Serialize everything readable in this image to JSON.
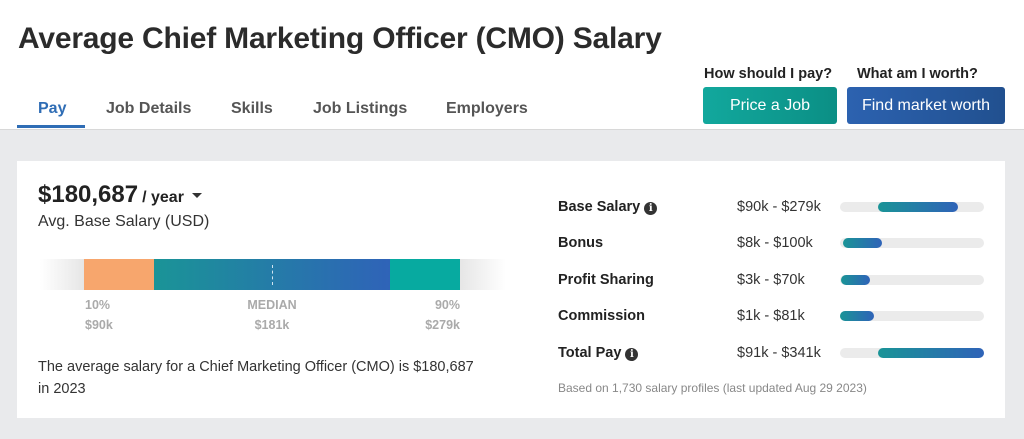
{
  "title": "Average Chief Marketing Officer (CMO) Salary",
  "tabs": [
    {
      "label": "Pay",
      "active": true
    },
    {
      "label": "Job Details"
    },
    {
      "label": "Skills"
    },
    {
      "label": "Job Listings"
    },
    {
      "label": "Employers"
    }
  ],
  "cta": {
    "price_question": "How should I pay?",
    "price_button": "Price a Job",
    "worth_question": "What am I worth?",
    "worth_button": "Find market worth"
  },
  "salary": {
    "amount": "$180,687",
    "period": "/ year",
    "label": "Avg. Base Salary (USD)"
  },
  "distribution": {
    "p10_label": "10%",
    "p10_value": "$90k",
    "median_label": "MEDIAN",
    "median_value": "$181k",
    "p90_label": "90%",
    "p90_value": "$279k"
  },
  "summary": "The average salary for a Chief Marketing Officer (CMO) is $180,687 in 2023",
  "breakdown": [
    {
      "label": "Base Salary",
      "info": true,
      "range": "$90k - $279k",
      "low": 90,
      "high": 279
    },
    {
      "label": "Bonus",
      "info": false,
      "range": "$8k - $100k",
      "low": 8,
      "high": 100
    },
    {
      "label": "Profit Sharing",
      "info": false,
      "range": "$3k - $70k",
      "low": 3,
      "high": 70
    },
    {
      "label": "Commission",
      "info": false,
      "range": "$1k - $81k",
      "low": 1,
      "high": 81
    },
    {
      "label": "Total Pay",
      "info": true,
      "range": "$91k - $341k",
      "low": 91,
      "high": 341
    }
  ],
  "footer": "Based on 1,730 salary profiles (last updated Aug 29 2023)",
  "colors": {
    "accent": "#2f6db5",
    "teal": "#12a89d",
    "blue": "#2c62b0",
    "orange": "#f7a66d"
  }
}
